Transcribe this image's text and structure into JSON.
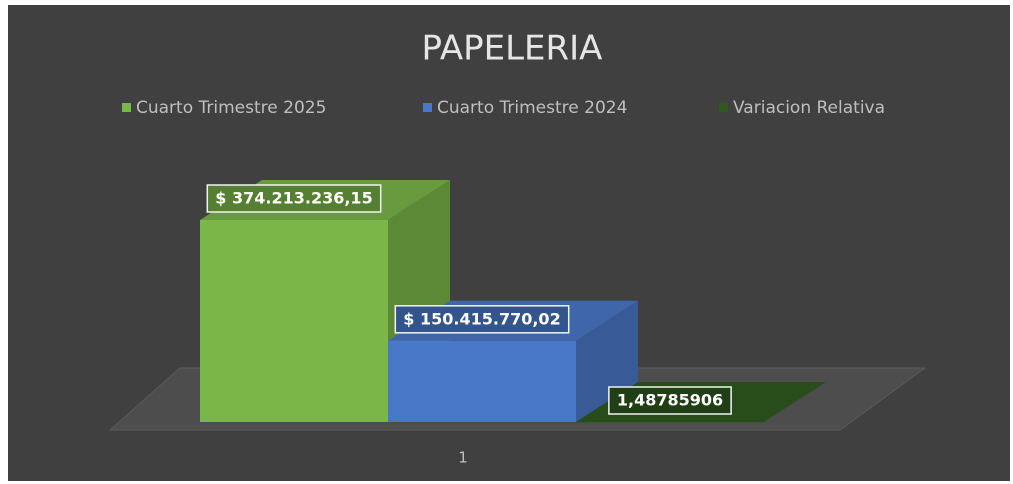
{
  "chart_data": {
    "type": "bar",
    "title": "PAPELERIA",
    "categories": [
      "1"
    ],
    "series": [
      {
        "name": "Cuarto Trimestre 2025",
        "color": "#7ab648",
        "values": [
          374213236.15
        ],
        "value_labels": [
          "$ 374.213.236,15"
        ]
      },
      {
        "name": "Cuarto Trimestre 2024",
        "color": "#4a78c8",
        "values": [
          150415770.02
        ],
        "value_labels": [
          "$ 150.415.770,02"
        ]
      },
      {
        "name": "Variacion Relativa",
        "color": "#2f5a1f",
        "values": [
          1.48785906
        ],
        "value_labels": [
          "1,48785906"
        ]
      }
    ],
    "legend": "top"
  }
}
